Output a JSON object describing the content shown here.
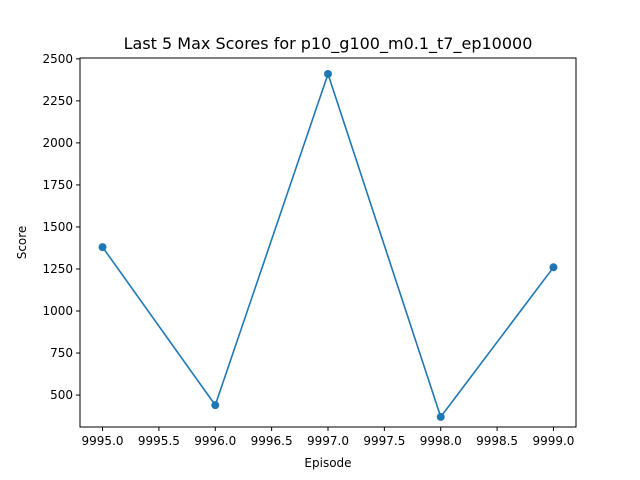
{
  "chart_data": {
    "type": "line",
    "title": "Last 5 Max Scores for p10_g100_m0.1_t7_ep10000",
    "xlabel": "Episode",
    "ylabel": "Score",
    "x": [
      9995,
      9996,
      9997,
      9998,
      9999
    ],
    "series": [
      {
        "values": [
          1380,
          440,
          2410,
          370,
          1260
        ]
      }
    ],
    "xlim": [
      9994.8,
      9999.2
    ],
    "ylim": [
      310,
      2505
    ],
    "xticks": [
      9995.0,
      9995.5,
      9996.0,
      9996.5,
      9997.0,
      9997.5,
      9998.0,
      9998.5,
      9999.0
    ],
    "xtick_labels": [
      "9995.0",
      "9995.5",
      "9996.0",
      "9996.5",
      "9997.0",
      "9997.5",
      "9998.0",
      "9998.5",
      "9999.0"
    ],
    "yticks": [
      500,
      750,
      1000,
      1250,
      1500,
      1750,
      2000,
      2250,
      2500
    ],
    "ytick_labels": [
      "500",
      "750",
      "1000",
      "1250",
      "1500",
      "1750",
      "2000",
      "2250",
      "2500"
    ],
    "grid": false,
    "markers": true,
    "color": "#1f77b4"
  }
}
